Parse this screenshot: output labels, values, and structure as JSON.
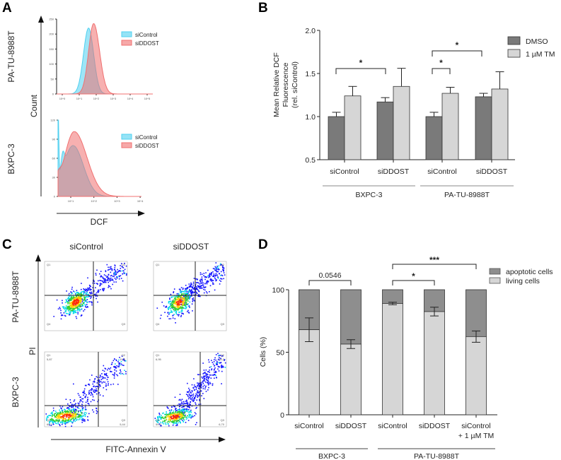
{
  "panels": {
    "a": "A",
    "b": "B",
    "c": "C",
    "d": "D"
  },
  "chart_data": [
    {
      "id": "A",
      "type": "area",
      "title": "",
      "xlabel": "DCF",
      "ylabel": "Count",
      "subplots": [
        {
          "row_label": "PA-TU-8988T",
          "yticks": [
            "0",
            "50",
            "100",
            "150",
            "200",
            "250"
          ],
          "xticks": [
            "10^0",
            "10^1",
            "10^2",
            "10^3",
            "10^4",
            "10^5"
          ],
          "series": [
            {
              "name": "siControl",
              "color": "#4fd0f0",
              "peak_log10": 1.55,
              "peak_count": 220
            },
            {
              "name": "siDDOST",
              "color": "#f07070",
              "peak_log10": 1.85,
              "peak_count": 235
            }
          ]
        },
        {
          "row_label": "BXPC-3",
          "yticks": [
            "0",
            "30",
            "60",
            "90",
            "120"
          ],
          "xticks": [
            "10^1",
            "10^2",
            "10^3",
            "10^4"
          ],
          "series": [
            {
              "name": "siControl",
              "color": "#4fd0f0",
              "peak_log10": 1.1,
              "peak_count": 80
            },
            {
              "name": "siDDOST",
              "color": "#f07070",
              "peak_log10": 1.15,
              "peak_count": 102
            }
          ]
        }
      ]
    },
    {
      "id": "B",
      "type": "bar",
      "ylabel": "Mean Relative DCF Fluorescence (rel. siControl)",
      "ylabel_lines": [
        "Mean Relative DCF",
        "Fluorescence",
        "(rel. siControl)"
      ],
      "ylim": [
        0.5,
        2.0
      ],
      "yticks": [
        "0.5",
        "1.0",
        "1.5",
        "2.0"
      ],
      "categories": [
        "siControl",
        "siDDOST",
        "siControl",
        "siDDOST"
      ],
      "groups": [
        {
          "label": "BXPC-3",
          "span": [
            0,
            1
          ]
        },
        {
          "label": "PA-TU-8988T",
          "span": [
            2,
            3
          ]
        }
      ],
      "series": [
        {
          "name": "DMSO",
          "color": "#7a7a7a",
          "values": [
            1.0,
            1.17,
            1.0,
            1.23
          ],
          "errors": [
            0.05,
            0.05,
            0.05,
            0.04
          ]
        },
        {
          "name": "1 µM TM",
          "color": "#d6d6d6",
          "values": [
            1.24,
            1.35,
            1.27,
            1.32
          ],
          "errors": [
            0.11,
            0.21,
            0.07,
            0.2
          ]
        }
      ],
      "significance": [
        {
          "from": "BXPC-3 siControl DMSO",
          "to": "BXPC-3 siDDOST DMSO",
          "label": "*"
        },
        {
          "from": "PA-TU-8988T siControl DMSO",
          "to": "PA-TU-8988T siControl TM",
          "label": "*"
        },
        {
          "from": "PA-TU-8988T siControl DMSO",
          "to": "PA-TU-8988T siDDOST DMSO",
          "label": "*"
        }
      ],
      "legend": "top-right"
    },
    {
      "id": "C",
      "type": "scatter",
      "xlabel": "FITC-Annexin V",
      "ylabel": "PI",
      "columns": [
        "siControl",
        "siDDOST"
      ],
      "rows": [
        "PA-TU-8988T",
        "BXPC-3"
      ],
      "quadrants_top": [
        "Q1",
        "Q2",
        "Q3",
        "Q4"
      ],
      "quadrants_bxpc3": {
        "siControl": {
          "Q1": "5,87",
          "Q2": "19,6",
          "Q3": "5,44",
          "Q4": "69,1"
        },
        "siDDOST": {
          "Q1": "6,95",
          "Q2": "28,0",
          "Q3": "6,70",
          "Q4": "59,5"
        }
      }
    },
    {
      "id": "D",
      "type": "bar",
      "stacked": true,
      "ylabel": "Cells (%)",
      "ylim": [
        0,
        100
      ],
      "yticks": [
        "0",
        "50",
        "100"
      ],
      "categories": [
        "siControl",
        "siDDOST",
        "siControl",
        "siDDOST",
        "siControl"
      ],
      "category_sub": [
        "",
        "",
        "",
        "",
        "+ 1 µM TM"
      ],
      "groups": [
        {
          "label": "BXPC-3",
          "span": [
            0,
            1
          ]
        },
        {
          "label": "PA-TU-8988T",
          "span": [
            2,
            4
          ]
        }
      ],
      "series": [
        {
          "name": "apoptotic cells",
          "color": "#8e8e8e",
          "values": [
            32,
            43.5,
            11,
            17.5,
            37.5
          ]
        },
        {
          "name": "living cells",
          "color": "#d6d6d6",
          "values": [
            68,
            56.5,
            89,
            82.5,
            62.5
          ],
          "errors": [
            9.5,
            3.5,
            1,
            3.5,
            4.5
          ]
        }
      ],
      "significance": [
        {
          "from": 0,
          "to": 1,
          "label": "0.0546"
        },
        {
          "from": 2,
          "to": 3,
          "label": "*"
        },
        {
          "from": 2,
          "to": 4,
          "label": "***"
        }
      ],
      "legend": "top-right"
    }
  ]
}
